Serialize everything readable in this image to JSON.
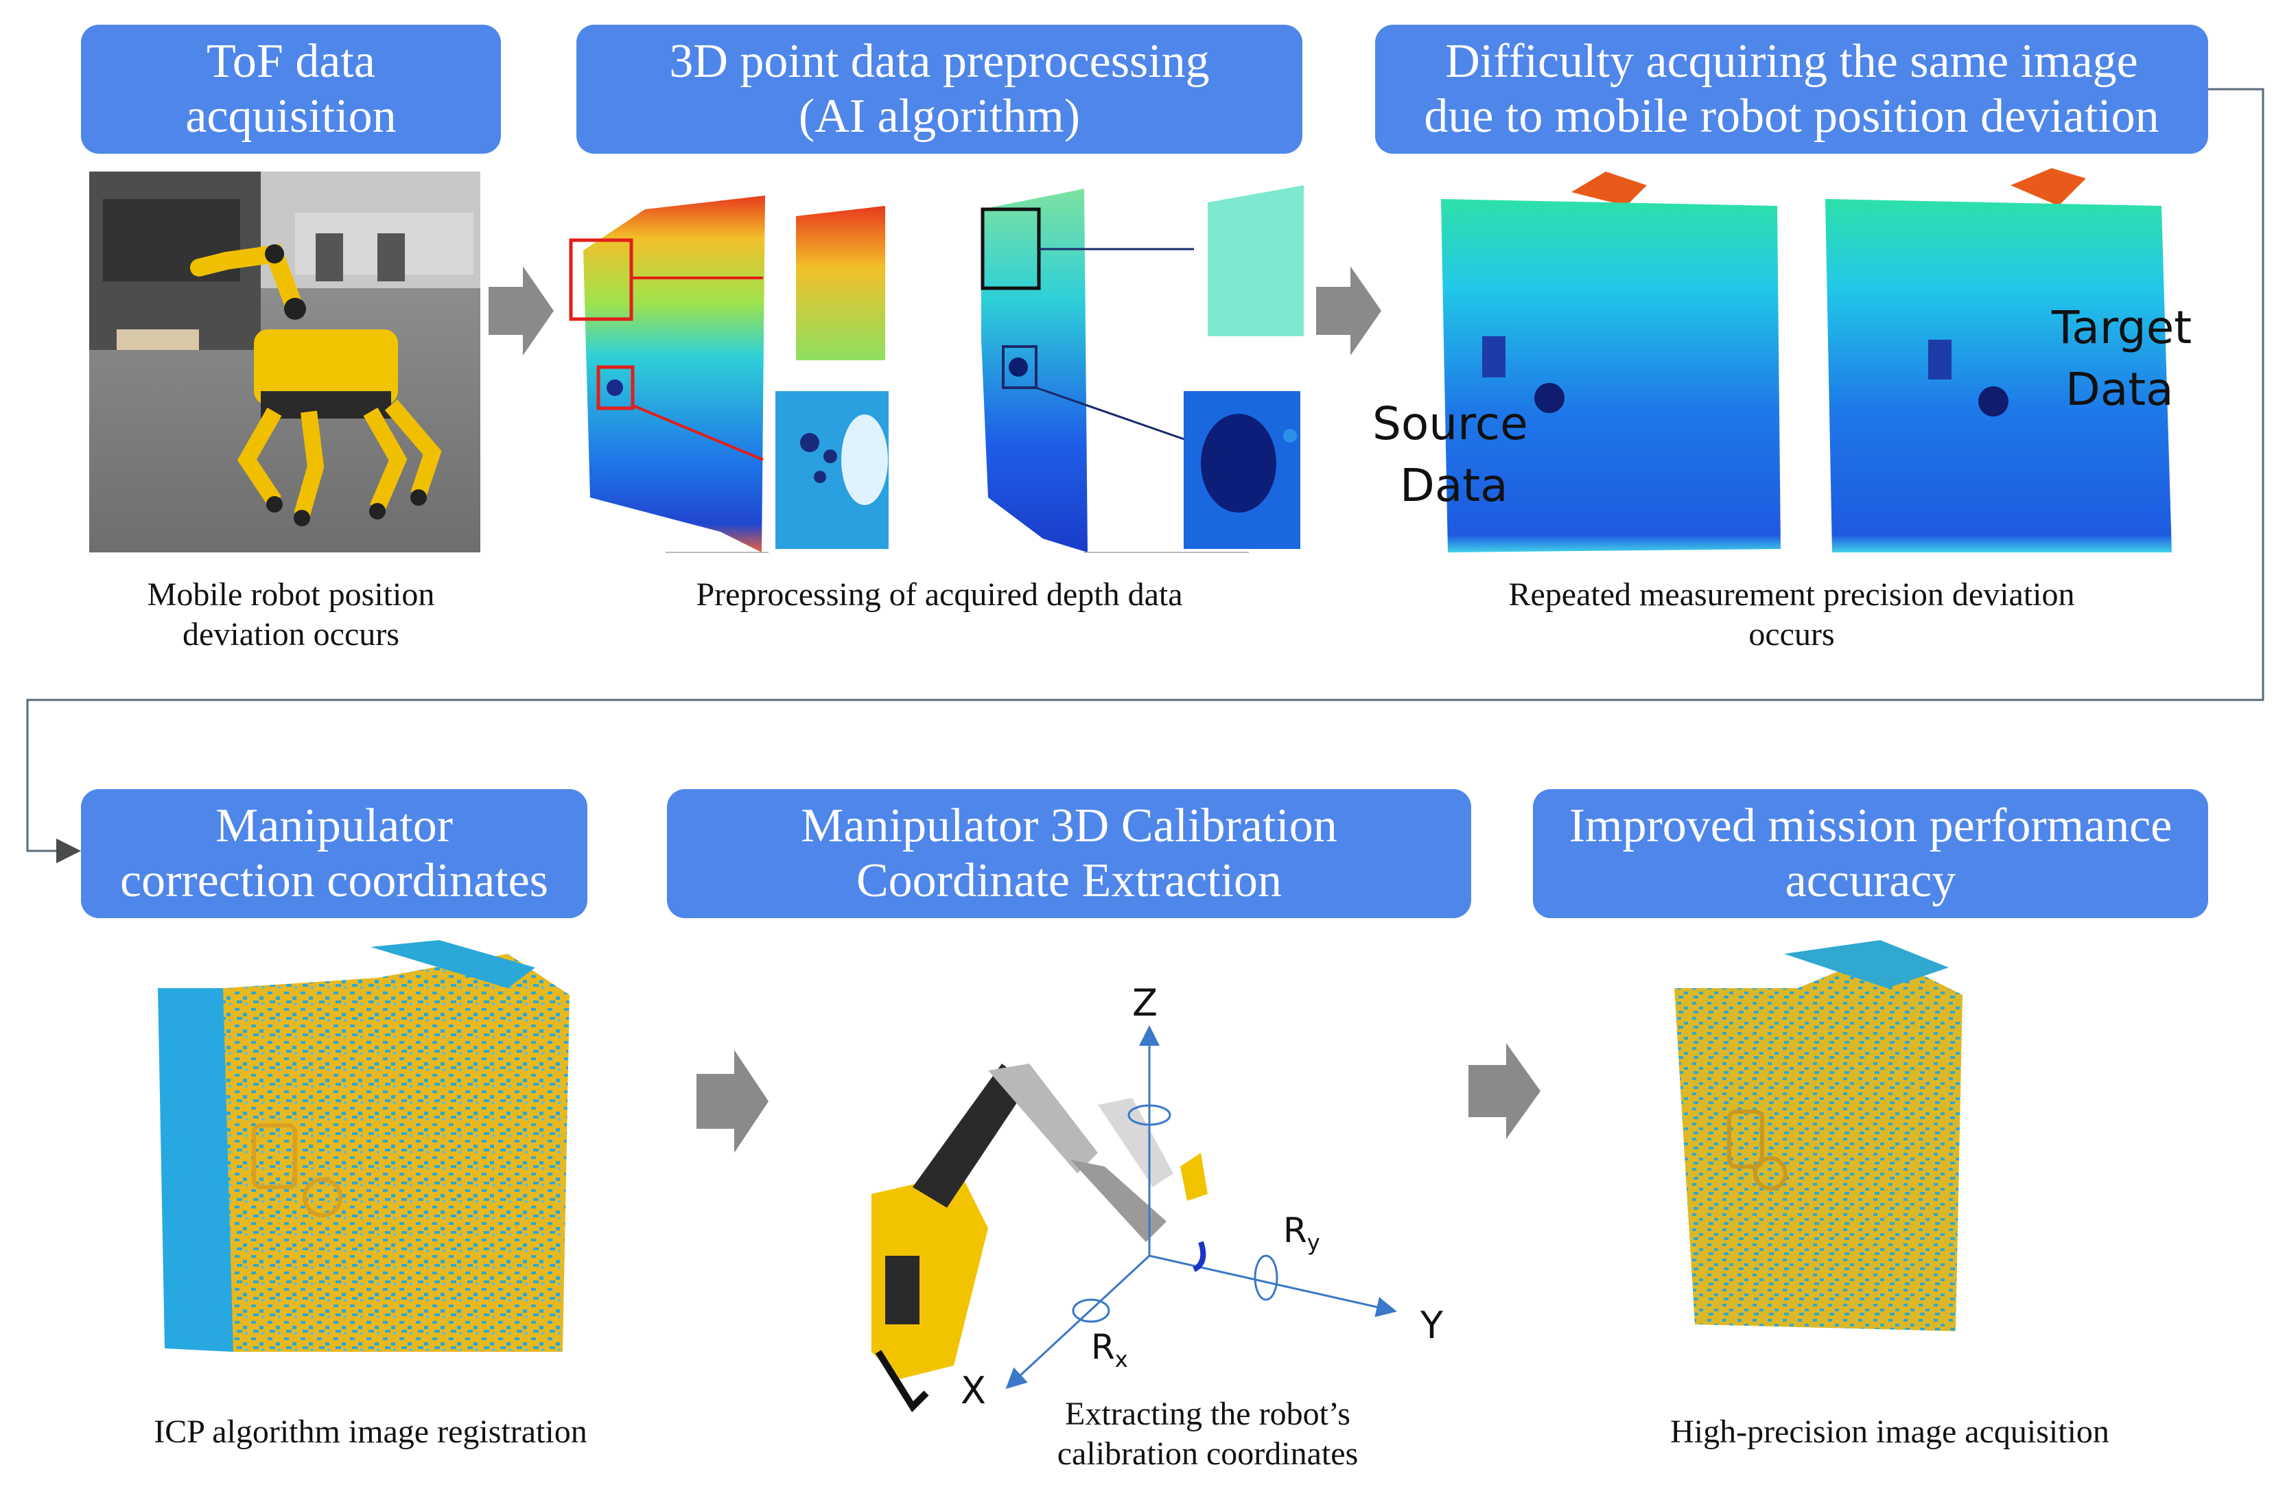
{
  "top_row": {
    "step1": {
      "title_line1": "ToF data",
      "title_line2": "acquisition",
      "caption_line1": "Mobile robot position",
      "caption_line2": "deviation occurs"
    },
    "step2": {
      "title_line1": "3D point data preprocessing",
      "title_line2": "(AI algorithm)",
      "caption": "Preprocessing of acquired depth data"
    },
    "step3": {
      "title_line1": "Difficulty acquiring the same image",
      "title_line2": "due to mobile robot position deviation",
      "caption_line1": "Repeated measurement precision deviation",
      "caption_line2": "occurs",
      "source_label_line1": "Source",
      "source_label_line2": "Data",
      "target_label_line1": "Target",
      "target_label_line2": "Data"
    }
  },
  "bottom_row": {
    "step4": {
      "title_line1": "Manipulator",
      "title_line2": "correction coordinates",
      "caption": "ICP algorithm image registration"
    },
    "step5": {
      "title_line1": "Manipulator 3D Calibration",
      "title_line2": "Coordinate Extraction",
      "caption_line1": "Extracting the robot’s",
      "caption_line2": "calibration coordinates",
      "axis_z": "Z",
      "axis_y": "Y",
      "axis_x": "X",
      "rot_x": "R",
      "rot_x_sub": "x",
      "rot_y": "R",
      "rot_y_sub": "y"
    },
    "step6": {
      "title_line1": "Improved mission performance",
      "title_line2": "accuracy",
      "caption": "High-precision image acquisition"
    }
  },
  "colors": {
    "title_box": "#4f86ea",
    "arrow": "#8a8a8a",
    "connector": "#4a4a4a"
  }
}
